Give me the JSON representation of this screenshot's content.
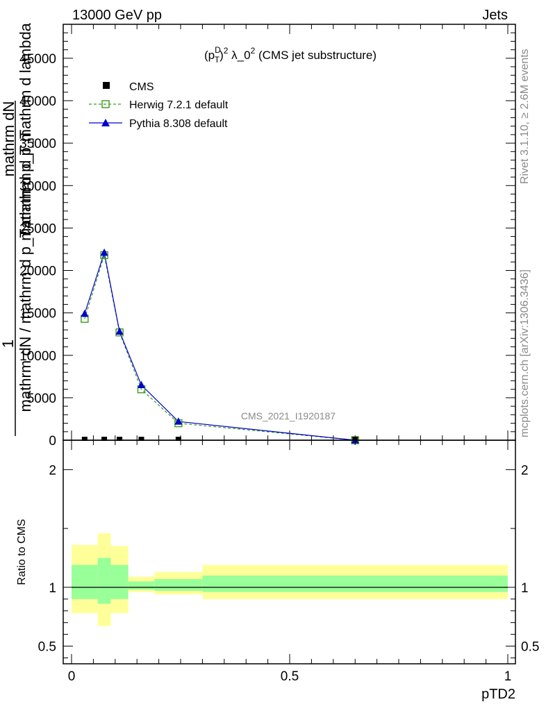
{
  "header": {
    "left": "13000 GeV pp",
    "right": "Jets"
  },
  "side": {
    "rivet": "Rivet 3.1.10, ≥ 2.6M events",
    "mcplots": "mcplots.cern.ch [arXiv:1306.3436]"
  },
  "chart_data": [
    {
      "type": "line",
      "title": "(p_T^D)^2 λ_0^2 (CMS jet substructure)",
      "title_parts": {
        "p": "(p",
        "sup_d": "D",
        "sub_t": "T",
        "close": ")",
        "sup_2": "2",
        "rest": " λ_0",
        "sup_2b": "2",
        "tail": " (CMS jet substructure)"
      },
      "ylabel_lines": [
        "1",
        "mathrm dN",
        "mathrm dN / mathrm d p_T mathrm d p_T",
        "mathrm d p_T mathrm d lambda"
      ],
      "watermark": "CMS_2021_I1920187",
      "xlim": [
        0,
        1
      ],
      "ylim": [
        0,
        49000
      ],
      "yticks": [
        0,
        5000,
        10000,
        15000,
        20000,
        25000,
        30000,
        35000,
        40000,
        45000
      ],
      "ytick_labels": [
        "0",
        "5000",
        "10000",
        "15000",
        "20000",
        "25000",
        "30000",
        "35000",
        "40000",
        "45000"
      ],
      "grid": false,
      "legend_position": "top-left",
      "series": [
        {
          "name": "CMS",
          "style": "data",
          "color": "#000000",
          "x": [
            0.03,
            0.075,
            0.11,
            0.16,
            0.245,
            0.65
          ],
          "y": [
            0,
            0,
            0,
            0,
            0,
            0
          ]
        },
        {
          "name": "Herwig 7.2.1 default",
          "style": "dashed-open-square",
          "color": "#3a9a1a",
          "x": [
            0.03,
            0.075,
            0.11,
            0.16,
            0.245,
            0.65
          ],
          "y": [
            14300,
            21800,
            12700,
            6000,
            2000,
            0
          ]
        },
        {
          "name": "Pythia 8.308 default",
          "style": "solid-triangle",
          "color": "#0000cc",
          "x": [
            0.03,
            0.075,
            0.11,
            0.16,
            0.245,
            0.65
          ],
          "y": [
            14900,
            22100,
            12800,
            6500,
            2200,
            0
          ]
        }
      ]
    },
    {
      "type": "area",
      "ylabel": "Ratio to CMS",
      "xlabel": "pTD2",
      "xlim": [
        0,
        1
      ],
      "ylim": [
        0.35,
        2.25
      ],
      "xticks": [
        0,
        0.5,
        1
      ],
      "xtick_labels": [
        "0",
        "0.5",
        "1"
      ],
      "yticks": [
        0.5,
        1,
        2
      ],
      "ytick_labels": [
        "0.5",
        "1",
        "2"
      ],
      "reference_line": 1,
      "bands": [
        {
          "x0": 0.0,
          "x1": 0.06,
          "stat": [
            0.9,
            1.19
          ],
          "total": [
            0.78,
            1.36
          ]
        },
        {
          "x0": 0.06,
          "x1": 0.09,
          "stat": [
            0.86,
            1.25
          ],
          "total": [
            0.67,
            1.46
          ]
        },
        {
          "x0": 0.09,
          "x1": 0.13,
          "stat": [
            0.9,
            1.19
          ],
          "total": [
            0.78,
            1.35
          ]
        },
        {
          "x0": 0.13,
          "x1": 0.19,
          "stat": [
            0.98,
            1.05
          ],
          "total": [
            0.96,
            1.09
          ]
        },
        {
          "x0": 0.19,
          "x1": 0.3,
          "stat": [
            0.97,
            1.07
          ],
          "total": [
            0.94,
            1.13
          ]
        },
        {
          "x0": 0.3,
          "x1": 1.0,
          "stat": [
            0.96,
            1.1
          ],
          "total": [
            0.9,
            1.19
          ]
        }
      ],
      "band_colors": {
        "stat": "#99ff99",
        "total": "#ffff99"
      }
    }
  ]
}
